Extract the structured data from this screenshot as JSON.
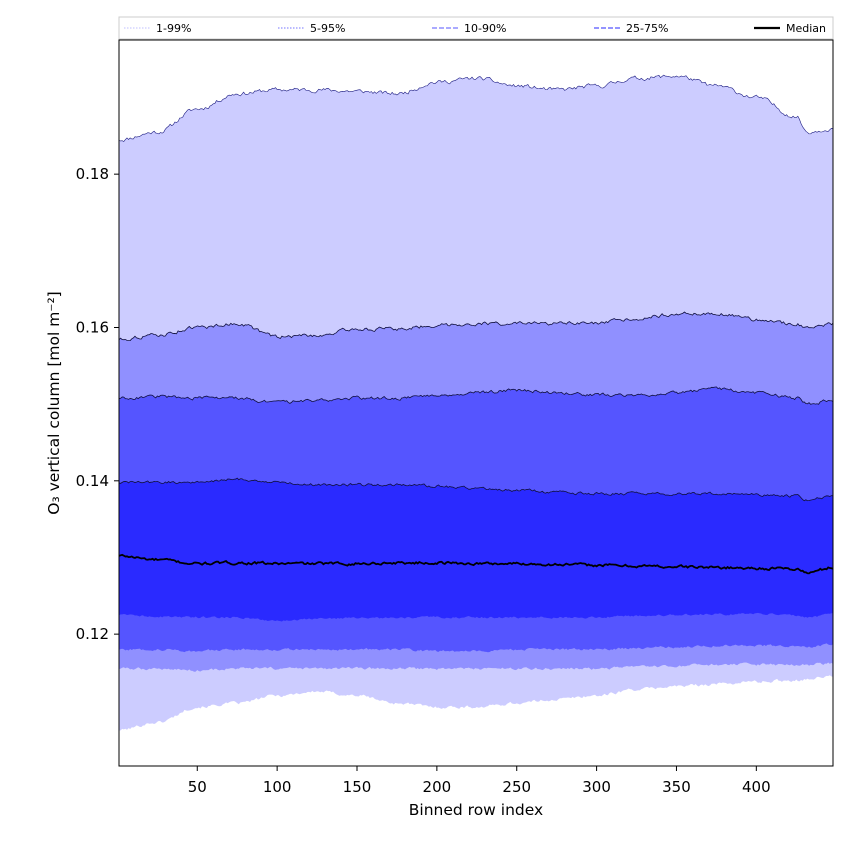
{
  "chart_data": {
    "type": "area",
    "xlabel": "Binned row index",
    "ylabel": "O₃ vertical column [mol m⁻²]",
    "xlim": [
      1,
      448
    ],
    "ylim": [
      0.1028,
      0.1975
    ],
    "xticks": [
      50,
      100,
      150,
      200,
      250,
      300,
      350,
      400
    ],
    "yticks": [
      0.12,
      0.14,
      0.16,
      0.18
    ],
    "ytick_labels": [
      "0.12",
      "0.14",
      "0.16",
      "0.18"
    ],
    "x": [
      1,
      25,
      50,
      75,
      100,
      125,
      150,
      175,
      200,
      225,
      250,
      275,
      300,
      325,
      350,
      375,
      400,
      425,
      432,
      448
    ],
    "bands": [
      {
        "name": "1-99%",
        "color": "#ccccff",
        "lower": [
          0.1075,
          0.1085,
          0.1105,
          0.111,
          0.112,
          0.1125,
          0.112,
          0.111,
          0.1105,
          0.1105,
          0.111,
          0.1115,
          0.112,
          0.1128,
          0.1132,
          0.1135,
          0.1138,
          0.114,
          0.1142,
          0.1145
        ],
        "upper": [
          0.1845,
          0.1855,
          0.1885,
          0.1905,
          0.191,
          0.191,
          0.1908,
          0.1905,
          0.192,
          0.1925,
          0.1915,
          0.191,
          0.1915,
          0.1925,
          0.1928,
          0.1915,
          0.19,
          0.1875,
          0.1855,
          0.186
        ]
      },
      {
        "name": "5-95%",
        "color": "#9090ff",
        "lower": [
          0.1155,
          0.1155,
          0.1153,
          0.1155,
          0.1155,
          0.1155,
          0.1155,
          0.1155,
          0.1155,
          0.1155,
          0.1155,
          0.1155,
          0.1155,
          0.1157,
          0.1158,
          0.116,
          0.116,
          0.116,
          0.116,
          0.1162
        ],
        "upper": [
          0.1585,
          0.159,
          0.16,
          0.1605,
          0.1588,
          0.159,
          0.1598,
          0.1598,
          0.1603,
          0.1605,
          0.1605,
          0.1605,
          0.1605,
          0.1612,
          0.1618,
          0.1618,
          0.161,
          0.1605,
          0.1598,
          0.1605
        ]
      },
      {
        "name": "10-90%",
        "color": "#5555ff",
        "lower": [
          0.118,
          0.118,
          0.1178,
          0.118,
          0.118,
          0.118,
          0.118,
          0.118,
          0.1178,
          0.1178,
          0.118,
          0.118,
          0.118,
          0.1182,
          0.1183,
          0.1185,
          0.1185,
          0.1185,
          0.1183,
          0.1186
        ],
        "upper": [
          0.1508,
          0.151,
          0.1508,
          0.1508,
          0.1502,
          0.1505,
          0.1508,
          0.1508,
          0.1512,
          0.1515,
          0.1518,
          0.1515,
          0.1512,
          0.1512,
          0.1515,
          0.152,
          0.1515,
          0.1508,
          0.15,
          0.1505
        ]
      },
      {
        "name": "25-75%",
        "color": "#2a2aff",
        "lower": [
          0.1225,
          0.1223,
          0.1222,
          0.1222,
          0.1218,
          0.122,
          0.1221,
          0.1221,
          0.1222,
          0.1222,
          0.1222,
          0.1222,
          0.1222,
          0.1224,
          0.1225,
          0.1226,
          0.1227,
          0.1224,
          0.1222,
          0.1226
        ],
        "upper": [
          0.1398,
          0.1398,
          0.1398,
          0.1402,
          0.1398,
          0.1395,
          0.1395,
          0.1395,
          0.1393,
          0.139,
          0.1388,
          0.1385,
          0.1383,
          0.1383,
          0.1383,
          0.1383,
          0.1382,
          0.138,
          0.1375,
          0.138
        ]
      }
    ],
    "median": {
      "name": "Median",
      "color": "#000000",
      "values": [
        0.1302,
        0.1297,
        0.1292,
        0.1293,
        0.1292,
        0.1292,
        0.1292,
        0.1293,
        0.1293,
        0.1292,
        0.1292,
        0.1291,
        0.129,
        0.1289,
        0.1288,
        0.1287,
        0.1286,
        0.1285,
        0.128,
        0.1287
      ]
    },
    "legend": {
      "placement": "top",
      "entries": [
        {
          "label": "1-99%",
          "color": "#ccccff",
          "style": "dotted"
        },
        {
          "label": "5-95%",
          "color": "#9090ff",
          "style": "dotted"
        },
        {
          "label": "10-90%",
          "color": "#7777ff",
          "style": "dashed"
        },
        {
          "label": "25-75%",
          "color": "#5555ff",
          "style": "dashed"
        },
        {
          "label": "Median",
          "color": "#000000",
          "style": "solid"
        }
      ]
    },
    "grid": false
  }
}
